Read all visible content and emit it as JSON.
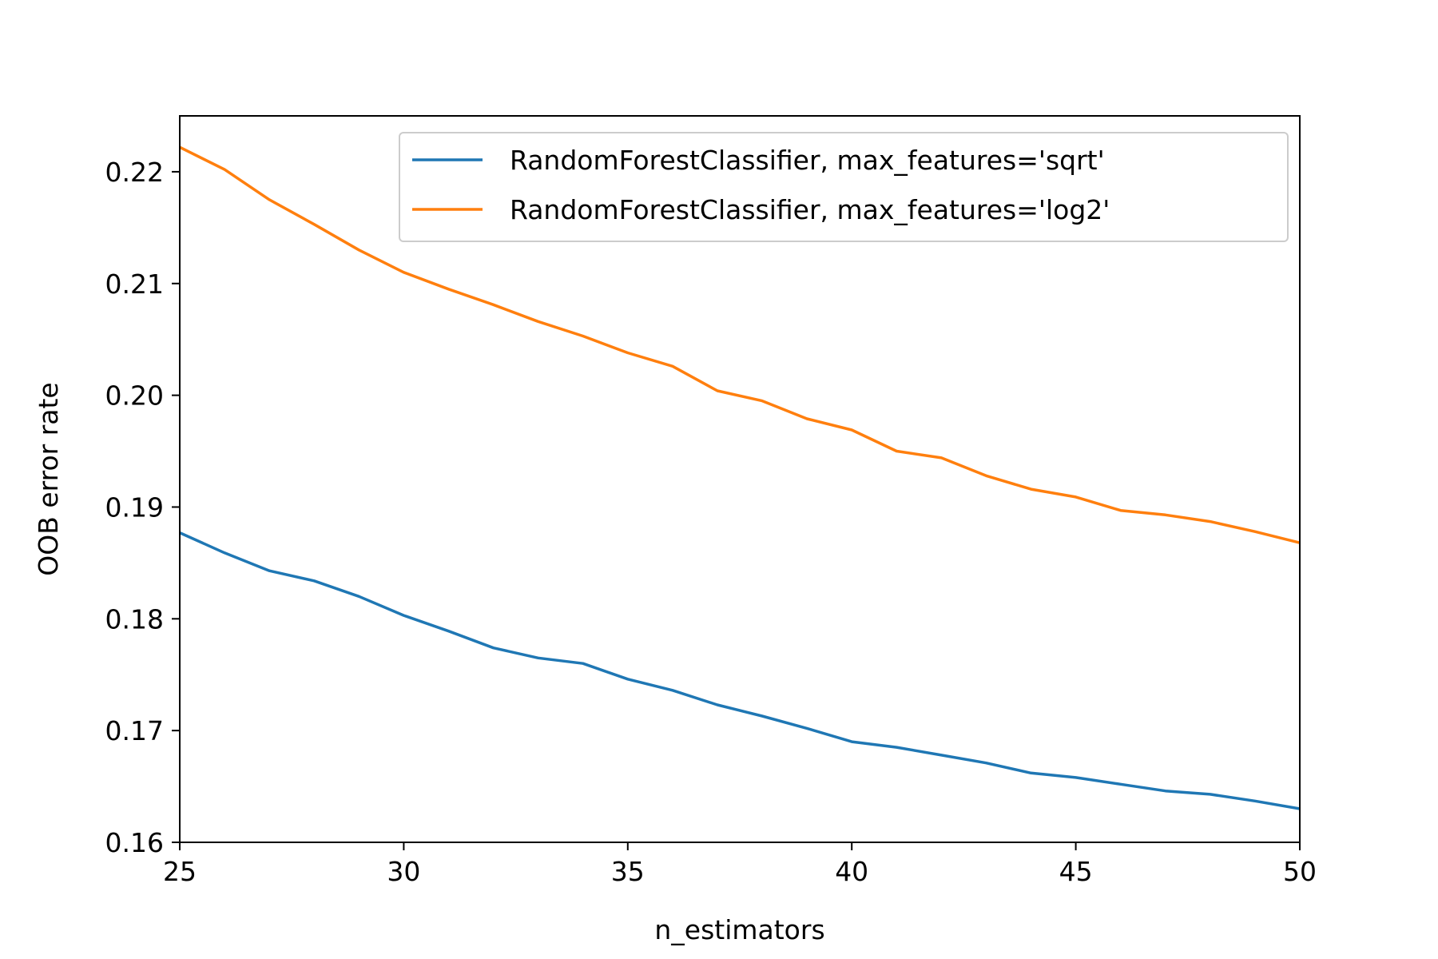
{
  "chart_data": {
    "type": "line",
    "title": "",
    "xlabel": "n_estimators",
    "ylabel": "OOB error rate",
    "xlim": [
      25,
      50
    ],
    "ylim": [
      0.16,
      0.225
    ],
    "xticks": [
      25,
      30,
      35,
      40,
      45,
      50
    ],
    "xtick_labels": [
      "25",
      "30",
      "35",
      "40",
      "45",
      "50"
    ],
    "yticks": [
      0.16,
      0.17,
      0.18,
      0.19,
      0.2,
      0.21,
      0.22
    ],
    "ytick_labels": [
      "0.16",
      "0.17",
      "0.18",
      "0.19",
      "0.20",
      "0.21",
      "0.22"
    ],
    "grid": false,
    "legend_position": "upper-right",
    "x": [
      25,
      26,
      27,
      28,
      29,
      30,
      31,
      32,
      33,
      34,
      35,
      36,
      37,
      38,
      39,
      40,
      41,
      42,
      43,
      44,
      45,
      46,
      47,
      48,
      49,
      50
    ],
    "series": [
      {
        "name": "RandomForestClassifier, max_features='sqrt'",
        "color": "#1f77b4",
        "values": [
          0.1877,
          0.1859,
          0.1843,
          0.1834,
          0.182,
          0.1803,
          0.1789,
          0.1774,
          0.1765,
          0.176,
          0.1746,
          0.1736,
          0.1723,
          0.1713,
          0.1702,
          0.169,
          0.1685,
          0.1678,
          0.1671,
          0.1662,
          0.1658,
          0.1652,
          0.1646,
          0.1643,
          0.1637,
          0.163
        ]
      },
      {
        "name": "RandomForestClassifier, max_features='log2'",
        "color": "#ff7f0e",
        "values": [
          0.2222,
          0.2202,
          0.2175,
          0.2153,
          0.213,
          0.211,
          0.2095,
          0.2081,
          0.2066,
          0.2053,
          0.2038,
          0.2026,
          0.2004,
          0.1995,
          0.1979,
          0.1969,
          0.195,
          0.1944,
          0.1928,
          0.1916,
          0.1909,
          0.1897,
          0.1893,
          0.1887,
          0.1878,
          0.1868
        ]
      }
    ]
  }
}
